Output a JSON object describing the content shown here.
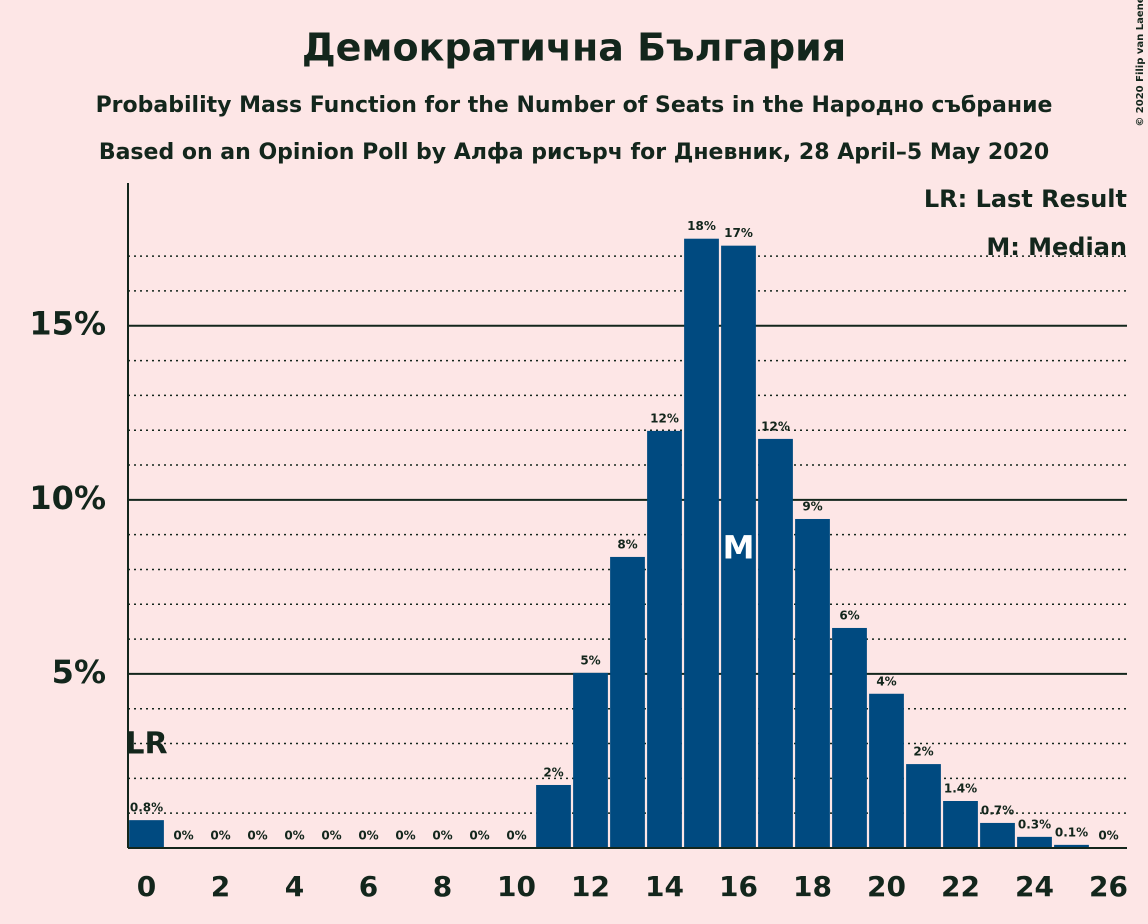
{
  "chart_data": {
    "type": "bar",
    "title": "Демократична България",
    "subtitle": "Probability Mass Function for the Number of Seats in the Народно събрание",
    "subtitle2": "Based on an Opinion Poll by Алфа рисърч for Дневник, 28 April–5 May 2020",
    "copyright": "© 2020 Filip van Laenen",
    "x": [
      0,
      1,
      2,
      3,
      4,
      5,
      6,
      7,
      8,
      9,
      10,
      11,
      12,
      13,
      14,
      15,
      16,
      17,
      18,
      19,
      20,
      21,
      22,
      23,
      24,
      25,
      26
    ],
    "values": [
      0.8,
      0,
      0,
      0,
      0,
      0,
      0,
      0,
      0,
      0,
      0,
      1.81,
      5.03,
      8.36,
      11.98,
      17.5,
      17.3,
      11.75,
      9.45,
      6.32,
      4.43,
      2.41,
      1.35,
      0.72,
      0.32,
      0.09,
      0
    ],
    "value_labels": [
      "0.8%",
      "0%",
      "0%",
      "0%",
      "0%",
      "0%",
      "0%",
      "0%",
      "0%",
      "0%",
      "0%",
      "2%",
      "5%",
      "8%",
      "12%",
      "18%",
      "17%",
      "12%",
      "9%",
      "6%",
      "4%",
      "2%",
      "1.4%",
      "0.7%",
      "0.3%",
      "0.1%",
      "0%"
    ],
    "color": "#004a80",
    "xlim": [
      -0.5,
      26.5
    ],
    "xticks": [
      0,
      2,
      4,
      6,
      8,
      10,
      12,
      14,
      16,
      18,
      20,
      22,
      24,
      26
    ],
    "ylim": [
      0,
      19.1
    ],
    "yticks": [
      {
        "value": 5,
        "label": "5%"
      },
      {
        "value": 10,
        "label": "10%"
      },
      {
        "value": 15,
        "label": "15%"
      }
    ],
    "minor_yticks": [
      1,
      2,
      3,
      4,
      6,
      7,
      8,
      9,
      11,
      12,
      13,
      14,
      16,
      17
    ],
    "grid": true,
    "annotations": [
      {
        "text": "LR",
        "x": 0
      },
      {
        "text": "M",
        "x": 16
      }
    ],
    "legend": [
      "LR: Last Result",
      "M: Median"
    ]
  }
}
